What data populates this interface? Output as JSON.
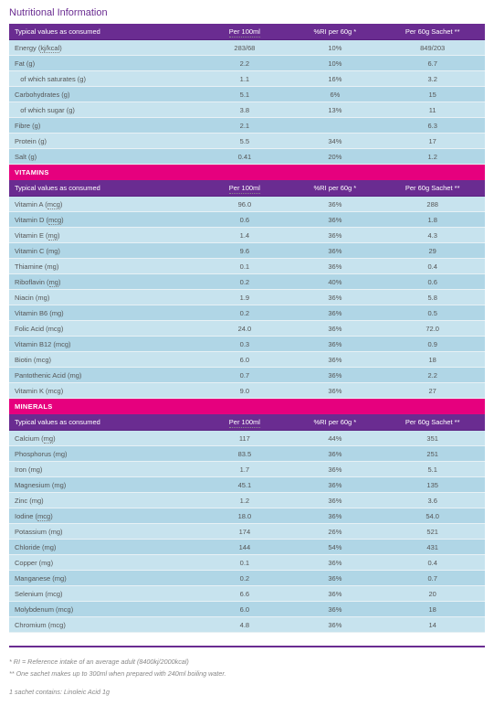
{
  "title": "Nutritional Information",
  "columns": {
    "label": "Typical values as consumed",
    "per100": "Per 100ml",
    "ri": "%RI per 60g *",
    "per60": "Per 60g Sachet **"
  },
  "colUnderline": {
    "per100": true,
    "ri": false,
    "per60": false
  },
  "sections": [
    {
      "title": null,
      "rows": [
        {
          "label": "Energy (kj/kcal)",
          "u": true,
          "per100": "283/68",
          "ri": "10%",
          "per60": "849/203"
        },
        {
          "label": "Fat (g)",
          "per100": "2.2",
          "ri": "10%",
          "per60": "6.7"
        },
        {
          "label": "  of which saturates (g)",
          "per100": "1.1",
          "ri": "16%",
          "per60": "3.2"
        },
        {
          "label": "Carbohydrates (g)",
          "per100": "5.1",
          "ri": "6%",
          "per60": "15"
        },
        {
          "label": "  of which sugar (g)",
          "per100": "3.8",
          "ri": "13%",
          "per60": "11"
        },
        {
          "label": "Fibre (g)",
          "per100": "2.1",
          "ri": "",
          "per60": "6.3"
        },
        {
          "label": "Protein (g)",
          "per100": "5.5",
          "ri": "34%",
          "per60": "17"
        },
        {
          "label": "Salt (g)",
          "per100": "0.41",
          "ri": "20%",
          "per60": "1.2"
        }
      ]
    },
    {
      "title": "VITAMINS",
      "rows": [
        {
          "label": "Vitamin A (mcg)",
          "u": true,
          "per100": "96.0",
          "ri": "36%",
          "per60": "288"
        },
        {
          "label": "Vitamin D (mcg)",
          "u": true,
          "per100": "0.6",
          "ri": "36%",
          "per60": "1.8"
        },
        {
          "label": "Vitamin E (mg)",
          "u": true,
          "per100": "1.4",
          "ri": "36%",
          "per60": "4.3"
        },
        {
          "label": "Vitamin C (mg)",
          "per100": "9.6",
          "ri": "36%",
          "per60": "29"
        },
        {
          "label": "Thiamine (mg)",
          "per100": "0.1",
          "ri": "36%",
          "per60": "0.4"
        },
        {
          "label": "Riboflavin (mg)",
          "u": true,
          "per100": "0.2",
          "ri": "40%",
          "per60": "0.6"
        },
        {
          "label": "Niacin (mg)",
          "per100": "1.9",
          "ri": "36%",
          "per60": "5.8"
        },
        {
          "label": "Vitamin B6 (mg)",
          "per100": "0.2",
          "ri": "36%",
          "per60": "0.5"
        },
        {
          "label": "Folic Acid (mcg)",
          "per100": "24.0",
          "ri": "36%",
          "per60": "72.0"
        },
        {
          "label": "Vitamin B12 (mcg)",
          "per100": "0.3",
          "ri": "36%",
          "per60": "0.9"
        },
        {
          "label": "Biotin (mcg)",
          "per100": "6.0",
          "ri": "36%",
          "per60": "18"
        },
        {
          "label": "Pantothenic Acid (mg)",
          "per100": "0.7",
          "ri": "36%",
          "per60": "2.2"
        },
        {
          "label": "Vitamin K (mcg)",
          "per100": "9.0",
          "ri": "36%",
          "per60": "27"
        }
      ]
    },
    {
      "title": "MINERALS",
      "rows": [
        {
          "label": "Calcium (mg)",
          "u": true,
          "per100": "117",
          "ri": "44%",
          "per60": "351"
        },
        {
          "label": "Phosphorus (mg)",
          "per100": "83.5",
          "ri": "36%",
          "per60": "251"
        },
        {
          "label": "Iron (mg)",
          "per100": "1.7",
          "ri": "36%",
          "per60": "5.1"
        },
        {
          "label": "Magnesium (mg)",
          "per100": "45.1",
          "ri": "36%",
          "per60": "135"
        },
        {
          "label": "Zinc (mg)",
          "per100": "1.2",
          "ri": "36%",
          "per60": "3.6"
        },
        {
          "label": "Iodine (mcg)",
          "u": true,
          "per100": "18.0",
          "ri": "36%",
          "per60": "54.0"
        },
        {
          "label": "Potassium (mg)",
          "per100": "174",
          "ri": "26%",
          "per60": "521"
        },
        {
          "label": "Chloride (mg)",
          "per100": "144",
          "ri": "54%",
          "per60": "431"
        },
        {
          "label": "Copper (mg)",
          "per100": "0.1",
          "ri": "36%",
          "per60": "0.4"
        },
        {
          "label": "Manganese (mg)",
          "per100": "0.2",
          "ri": "36%",
          "per60": "0.7"
        },
        {
          "label": "Selenium (mcg)",
          "per100": "6.6",
          "ri": "36%",
          "per60": "20"
        },
        {
          "label": "Molybdenum (mcg)",
          "per100": "6.0",
          "ri": "36%",
          "per60": "18"
        },
        {
          "label": "Chromium (mcg)",
          "per100": "4.8",
          "ri": "36%",
          "per60": "14"
        }
      ]
    }
  ],
  "footnotes": {
    "l1": "* RI = Reference intake of an average adult (8400kj/2000kcal)",
    "l2": "** One sachet makes up to 300ml when prepared with 240ml boiling water.",
    "l3": "1 sachet contains: Linoleic Acid 1g"
  },
  "colors": {
    "purple": "#6a2c91",
    "pink": "#e6007e",
    "rowOdd": "#c7e3ee",
    "rowEven": "#b0d6e6"
  }
}
